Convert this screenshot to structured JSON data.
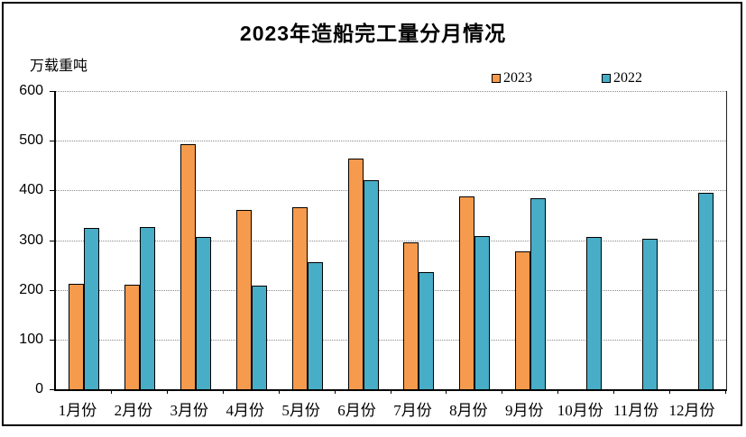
{
  "title": "2023年造船完工量分月情况",
  "y_axis_unit": "万载重吨",
  "legend": [
    {
      "label": "2023",
      "color": "#F69A4D"
    },
    {
      "label": "2022",
      "color": "#48ADC7"
    }
  ],
  "colors": {
    "bar_border": "#000000",
    "gridline": "#8a8a8a",
    "frame_border": "#000000",
    "background": "#ffffff"
  },
  "chart_data": {
    "type": "bar",
    "title": "2023年造船完工量分月情况",
    "ylabel": "万载重吨",
    "xlabel": "",
    "categories": [
      "1月份",
      "2月份",
      "3月份",
      "4月份",
      "5月份",
      "6月份",
      "7月份",
      "8月份",
      "9月份",
      "10月份",
      "11月份",
      "12月份"
    ],
    "series": [
      {
        "name": "2023",
        "color": "#F69A4D",
        "values": [
          212,
          211,
          493,
          361,
          367,
          464,
          296,
          388,
          277,
          null,
          null,
          null
        ]
      },
      {
        "name": "2022",
        "color": "#48ADC7",
        "values": [
          325,
          327,
          307,
          209,
          256,
          420,
          236,
          309,
          385,
          307,
          303,
          396
        ]
      }
    ],
    "ylim": [
      0,
      600
    ],
    "y_ticks": [
      600,
      500,
      400,
      300,
      200,
      100,
      0
    ],
    "grid": "horizontal-dotted",
    "legend_position": "top-right-inside"
  }
}
